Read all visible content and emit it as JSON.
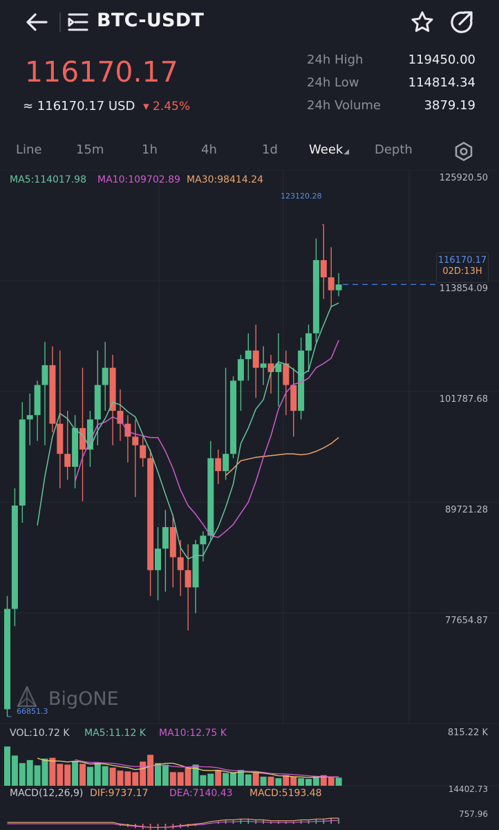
{
  "header": {
    "pair": "BTC-USDT",
    "back_icon": "arrow-left-icon",
    "menu_icon": "list-menu-icon",
    "favorite_icon": "star-icon",
    "share_icon": "share-arrow-icon"
  },
  "ticker": {
    "price": "116170.17",
    "usd_prefix": "≈ 116170.17 USD",
    "change": "▾ 2.45%",
    "stats": [
      {
        "label": "24h High",
        "value": "119450.00"
      },
      {
        "label": "24h Low",
        "value": "114814.34"
      },
      {
        "label": "24h Volume",
        "value": "3879.19"
      }
    ]
  },
  "tabs": [
    {
      "label": "Line",
      "active": false
    },
    {
      "label": "15m",
      "active": false
    },
    {
      "label": "1h",
      "active": false
    },
    {
      "label": "4h",
      "active": false
    },
    {
      "label": "1d",
      "active": false
    },
    {
      "label": "Week",
      "active": true
    },
    {
      "label": "Depth",
      "active": false
    }
  ],
  "settings_icon": "hexagon-settings-icon",
  "indicators": {
    "ma5": "MA5:114017.98",
    "ma10": "MA10:109702.89",
    "ma30": "MA30:98414.24",
    "vol": "VOL:10.72 K",
    "vol_ma5": "MA5:11.12 K",
    "vol_ma10": "MA10:12.75 K",
    "vol_max": "815.22 K",
    "macd_title": "MACD(12,26,9)",
    "dif": "DIF:9737.17",
    "dea": "DEA:7140.43",
    "macd": "MACD:5193.48",
    "macd_top": "14402.73",
    "macd_mid": "757.96"
  },
  "price_axis": [
    "125920.50",
    "113854.09",
    "101787.68",
    "89721.28",
    "77654.87"
  ],
  "markers": {
    "high": "123120.28",
    "low": "66851.3",
    "current": "116170.17",
    "countdown": "02D:13H"
  },
  "watermark": "BigONE",
  "colors": {
    "up": "#4fbf8c",
    "down": "#ec6a61",
    "ma5": "#68c4a0",
    "ma10": "#d25ad0",
    "ma30": "#efa470",
    "accent": "#3b7be6"
  },
  "chart_data": {
    "type": "candlestick",
    "ylim": [
      66000,
      128000
    ],
    "candles": [
      {
        "o": 66851,
        "h": 80000,
        "l": 66000,
        "c": 78500
      },
      {
        "o": 78500,
        "h": 92500,
        "l": 76500,
        "c": 90500
      },
      {
        "o": 90500,
        "h": 102500,
        "l": 88500,
        "c": 100500
      },
      {
        "o": 100500,
        "h": 103500,
        "l": 97500,
        "c": 101000
      },
      {
        "o": 101000,
        "h": 105000,
        "l": 98000,
        "c": 104500
      },
      {
        "o": 104500,
        "h": 109500,
        "l": 97500,
        "c": 106800
      },
      {
        "o": 106800,
        "h": 109000,
        "l": 99000,
        "c": 100000
      },
      {
        "o": 100000,
        "h": 108500,
        "l": 92500,
        "c": 96500
      },
      {
        "o": 96500,
        "h": 101500,
        "l": 93500,
        "c": 95000
      },
      {
        "o": 95000,
        "h": 101000,
        "l": 92500,
        "c": 99500
      },
      {
        "o": 99500,
        "h": 106500,
        "l": 91000,
        "c": 97000
      },
      {
        "o": 97000,
        "h": 101500,
        "l": 95000,
        "c": 100500
      },
      {
        "o": 100500,
        "h": 108500,
        "l": 97500,
        "c": 104500
      },
      {
        "o": 104500,
        "h": 109500,
        "l": 101500,
        "c": 106500
      },
      {
        "o": 106500,
        "h": 108000,
        "l": 97500,
        "c": 101500
      },
      {
        "o": 101500,
        "h": 104000,
        "l": 98000,
        "c": 100000
      },
      {
        "o": 100000,
        "h": 101000,
        "l": 95500,
        "c": 98500
      },
      {
        "o": 98500,
        "h": 100500,
        "l": 91500,
        "c": 97500
      },
      {
        "o": 97500,
        "h": 98500,
        "l": 95000,
        "c": 96000
      },
      {
        "o": 96000,
        "h": 97000,
        "l": 80000,
        "c": 83000
      },
      {
        "o": 83000,
        "h": 88000,
        "l": 79500,
        "c": 85500
      },
      {
        "o": 85500,
        "h": 90000,
        "l": 80500,
        "c": 88000
      },
      {
        "o": 88000,
        "h": 89500,
        "l": 81000,
        "c": 84500
      },
      {
        "o": 84500,
        "h": 86500,
        "l": 80000,
        "c": 83000
      },
      {
        "o": 83000,
        "h": 86000,
        "l": 76000,
        "c": 81000
      },
      {
        "o": 81000,
        "h": 86500,
        "l": 78000,
        "c": 86000
      },
      {
        "o": 86000,
        "h": 87500,
        "l": 84000,
        "c": 87000
      },
      {
        "o": 87000,
        "h": 98000,
        "l": 86500,
        "c": 96000
      },
      {
        "o": 96000,
        "h": 97000,
        "l": 93000,
        "c": 94500
      },
      {
        "o": 94500,
        "h": 106500,
        "l": 93500,
        "c": 96500
      },
      {
        "o": 96500,
        "h": 105500,
        "l": 96000,
        "c": 105000
      },
      {
        "o": 105000,
        "h": 108000,
        "l": 101500,
        "c": 107500
      },
      {
        "o": 107500,
        "h": 110500,
        "l": 105000,
        "c": 108500
      },
      {
        "o": 108500,
        "h": 111500,
        "l": 103000,
        "c": 106500
      },
      {
        "o": 106500,
        "h": 109000,
        "l": 104500,
        "c": 107000
      },
      {
        "o": 107000,
        "h": 108000,
        "l": 103500,
        "c": 106000
      },
      {
        "o": 106000,
        "h": 110500,
        "l": 102000,
        "c": 107000
      },
      {
        "o": 107000,
        "h": 108500,
        "l": 101000,
        "c": 104500
      },
      {
        "o": 104500,
        "h": 106500,
        "l": 98500,
        "c": 101500
      },
      {
        "o": 101500,
        "h": 110000,
        "l": 100500,
        "c": 108500
      },
      {
        "o": 108500,
        "h": 111500,
        "l": 106000,
        "c": 110500
      },
      {
        "o": 110500,
        "h": 121500,
        "l": 109500,
        "c": 119000
      },
      {
        "o": 119000,
        "h": 123120,
        "l": 114500,
        "c": 117000
      },
      {
        "o": 117000,
        "h": 120500,
        "l": 113500,
        "c": 115500
      },
      {
        "o": 115500,
        "h": 117500,
        "l": 114800,
        "c": 116170
      }
    ],
    "ma5": [
      null,
      null,
      null,
      null,
      88200,
      93900,
      98500,
      101200,
      100600,
      99300,
      98700,
      97200,
      99200,
      100600,
      102500,
      102200,
      101400,
      100800,
      98700,
      96800,
      94400,
      91800,
      89300,
      85600,
      84300,
      84700,
      84700,
      86400,
      88000,
      90300,
      93000,
      97700,
      99500,
      101700,
      102800,
      106000,
      107200,
      106900,
      106300,
      105600,
      106200,
      109300,
      111500,
      113600,
      114018
    ],
    "ma10": [
      null,
      null,
      null,
      null,
      null,
      null,
      null,
      null,
      null,
      93300,
      96100,
      98000,
      99900,
      100200,
      100800,
      100400,
      99100,
      98800,
      98600,
      98400,
      98400,
      96800,
      94800,
      92300,
      90500,
      89500,
      88300,
      87000,
      86800,
      87500,
      88300,
      89600,
      90900,
      93300,
      96100,
      98600,
      101700,
      103600,
      104600,
      104800,
      105300,
      106500,
      107000,
      107600,
      109703
    ],
    "ma30": [
      null,
      null,
      null,
      null,
      null,
      null,
      null,
      null,
      null,
      null,
      null,
      null,
      null,
      null,
      null,
      null,
      null,
      null,
      null,
      null,
      null,
      null,
      null,
      null,
      null,
      null,
      null,
      null,
      null,
      94000,
      94800,
      95700,
      95900,
      96100,
      96200,
      96300,
      96400,
      96500,
      96500,
      96400,
      96500,
      96800,
      97200,
      97700,
      98414
    ],
    "volume": [
      52,
      40,
      30,
      34,
      27,
      36,
      37,
      29,
      28,
      33,
      29,
      25,
      31,
      26,
      24,
      20,
      19,
      18,
      32,
      41,
      30,
      28,
      18,
      18,
      24,
      28,
      14,
      16,
      20,
      17,
      18,
      21,
      15,
      17,
      12,
      12,
      10,
      14,
      12,
      10,
      9,
      13,
      14,
      12,
      10.72
    ],
    "vol_max": 815.22,
    "macd": [
      0,
      0,
      0,
      0,
      0,
      0,
      0,
      0,
      0,
      0,
      0,
      0,
      0,
      0,
      0,
      -2,
      -3,
      -4,
      -5,
      -6,
      -6,
      -6,
      -5,
      -4,
      -3,
      -2,
      -1,
      1,
      2,
      3,
      3,
      4,
      4,
      3,
      3,
      2,
      2,
      2,
      2,
      3,
      3,
      4,
      4,
      5,
      5.2
    ]
  }
}
